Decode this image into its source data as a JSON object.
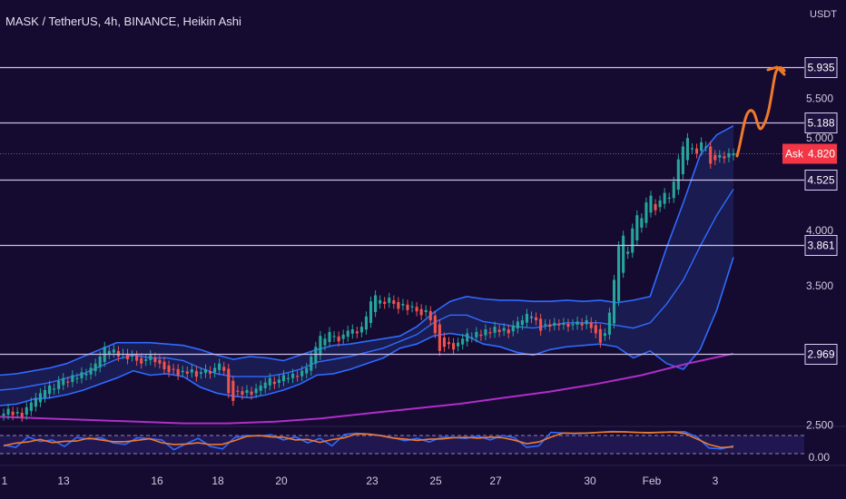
{
  "header": {
    "title": "MASK / TetherUS, 4h, BINANCE, Heikin Ashi",
    "currency": "USDT"
  },
  "colors": {
    "background": "#150a30",
    "up": "#26a69a",
    "down": "#ef5350",
    "bollinger": "#2f6bff",
    "bollinger_fill": "#1f2a6b",
    "ma": "#b02ec8",
    "level_line": "#cdbfe8",
    "annotation": "#f07a2a",
    "stoch_k": "#2f6bff",
    "stoch_d": "#f07a2a",
    "ask": "#f23645"
  },
  "chart_data": {
    "type": "candlestick",
    "symbol": "MASK / TetherUS",
    "interval": "4h",
    "exchange": "BINANCE",
    "style": "Heikin Ashi",
    "y_scale": "log",
    "ylim": [
      2.3,
      6.9
    ],
    "price_axis_labels": [
      "5.500",
      "5.000",
      "4.000",
      "3.500",
      "2.500"
    ],
    "time_axis_labels": [
      "1",
      "13",
      "16",
      "18",
      "20",
      "23",
      "25",
      "27",
      "30",
      "Feb",
      "3"
    ],
    "horizontal_levels": [
      {
        "label": "5.935",
        "value": 5.935
      },
      {
        "label": "5.188",
        "value": 5.188
      },
      {
        "label": "4.525",
        "value": 4.525
      },
      {
        "label": "3.861",
        "value": 3.861
      },
      {
        "label": "2.969",
        "value": 2.969
      }
    ],
    "current_price": {
      "label": "Ask",
      "value_label": "4.820",
      "value": 4.82
    },
    "closes": [
      2.57,
      2.6,
      2.56,
      2.58,
      2.55,
      2.61,
      2.64,
      2.67,
      2.7,
      2.72,
      2.75,
      2.73,
      2.78,
      2.8,
      2.77,
      2.82,
      2.8,
      2.84,
      2.83,
      2.87,
      2.9,
      2.95,
      3.02,
      2.99,
      3.0,
      2.95,
      2.97,
      2.93,
      2.96,
      2.92,
      2.9,
      2.93,
      2.96,
      2.91,
      2.9,
      2.86,
      2.84,
      2.86,
      2.82,
      2.85,
      2.83,
      2.86,
      2.81,
      2.84,
      2.86,
      2.83,
      2.87,
      2.9,
      2.85,
      2.7,
      2.65,
      2.71,
      2.69,
      2.72,
      2.69,
      2.73,
      2.75,
      2.77,
      2.8,
      2.76,
      2.79,
      2.82,
      2.8,
      2.83,
      2.81,
      2.85,
      2.87,
      2.95,
      3.02,
      3.1,
      3.08,
      3.13,
      3.1,
      3.06,
      3.11,
      3.14,
      3.15,
      3.12,
      3.17,
      3.25,
      3.37,
      3.42,
      3.38,
      3.35,
      3.4,
      3.35,
      3.31,
      3.35,
      3.3,
      3.33,
      3.29,
      3.26,
      3.3,
      3.22,
      3.12,
      2.99,
      3.02,
      3.04,
      3.0,
      3.05,
      3.08,
      3.12,
      3.09,
      3.13,
      3.1,
      3.15,
      3.12,
      3.17,
      3.13,
      3.16,
      3.12,
      3.18,
      3.21,
      3.22,
      3.27,
      3.25,
      3.22,
      3.14,
      3.19,
      3.17,
      3.2,
      3.18,
      3.2,
      3.17,
      3.19,
      3.21,
      3.18,
      3.22,
      3.16,
      3.12,
      3.05,
      3.12,
      3.28,
      3.55,
      3.85,
      3.95,
      3.8,
      4.02,
      4.15,
      4.12,
      4.28,
      4.35,
      4.2,
      4.3,
      4.38,
      4.33,
      4.5,
      4.75,
      4.9,
      5.0,
      4.88,
      4.82,
      4.95,
      4.9,
      4.7,
      4.74,
      4.8,
      4.76,
      4.82,
      4.82
    ],
    "bollinger": {
      "upper": [
        2.82,
        2.83,
        2.85,
        2.87,
        2.9,
        2.95,
        3.0,
        3.05,
        3.05,
        3.05,
        3.04,
        3.03,
        3.0,
        2.96,
        2.93,
        2.95,
        2.94,
        2.92,
        2.96,
        3.0,
        3.03,
        3.04,
        3.06,
        3.08,
        3.1,
        3.17,
        3.28,
        3.37,
        3.41,
        3.39,
        3.38,
        3.38,
        3.37,
        3.37,
        3.38,
        3.37,
        3.38,
        3.36,
        3.38,
        3.41,
        3.84,
        4.28,
        4.8,
        5.04,
        5.15
      ],
      "middle": [
        2.72,
        2.73,
        2.75,
        2.77,
        2.8,
        2.83,
        2.88,
        2.93,
        2.96,
        2.94,
        2.94,
        2.92,
        2.87,
        2.83,
        2.81,
        2.81,
        2.81,
        2.83,
        2.86,
        2.91,
        2.93,
        2.95,
        2.98,
        3.01,
        3.06,
        3.11,
        3.2,
        3.26,
        3.26,
        3.21,
        3.19,
        3.17,
        3.16,
        3.18,
        3.2,
        3.2,
        3.2,
        3.18,
        3.16,
        3.2,
        3.35,
        3.55,
        3.85,
        4.15,
        4.42
      ],
      "lower": [
        2.62,
        2.63,
        2.66,
        2.67,
        2.69,
        2.72,
        2.76,
        2.8,
        2.85,
        2.82,
        2.83,
        2.81,
        2.74,
        2.7,
        2.68,
        2.67,
        2.69,
        2.72,
        2.76,
        2.82,
        2.83,
        2.86,
        2.9,
        2.94,
        3.01,
        3.04,
        3.1,
        3.12,
        3.1,
        3.04,
        3.02,
        2.98,
        2.96,
        3.0,
        3.02,
        3.03,
        3.04,
        3.02,
        2.94,
        2.99,
        2.9,
        2.86,
        3.0,
        3.3,
        3.75
      ]
    },
    "moving_average": [
      2.55,
      2.54,
      2.53,
      2.52,
      2.51,
      2.51,
      2.52,
      2.54,
      2.57,
      2.6,
      2.63,
      2.67,
      2.71,
      2.76,
      2.82,
      2.9,
      2.97
    ],
    "stochastic": {
      "axis_labels": [
        "0.00"
      ],
      "k": [
        38,
        30,
        65,
        50,
        55,
        33,
        63,
        58,
        62,
        45,
        40,
        62,
        59,
        55,
        22,
        42,
        60,
        33,
        25,
        63,
        70,
        68,
        72,
        55,
        65,
        45,
        60,
        35,
        73,
        77,
        75,
        70,
        62,
        52,
        60,
        48,
        64,
        63,
        60,
        68,
        55,
        70,
        62,
        30,
        35,
        80,
        78,
        76,
        78,
        80,
        83,
        82,
        80,
        78,
        80,
        82,
        82,
        65,
        28,
        25,
        35
      ]
    },
    "annotation": "projected up-path drawn toward the 5.935 level"
  }
}
